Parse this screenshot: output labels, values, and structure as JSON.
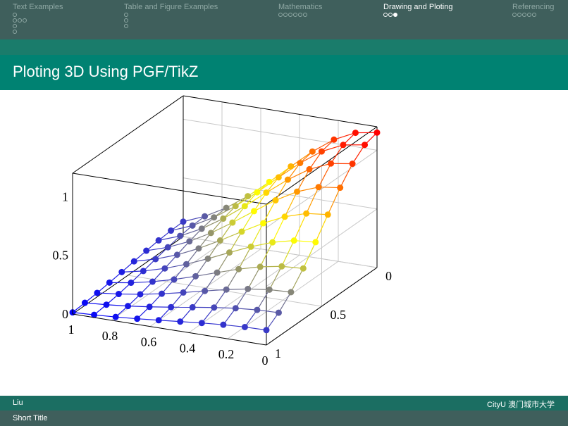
{
  "nav": {
    "sections": [
      {
        "label": "Text Examples",
        "dots": [
          [
            0
          ],
          [
            0,
            0,
            0
          ],
          [
            0
          ],
          [
            0
          ]
        ],
        "active": false
      },
      {
        "label": "Table and Figure Examples",
        "dots": [
          [
            0
          ],
          [
            0
          ],
          [
            0
          ]
        ],
        "active": false
      },
      {
        "label": "Mathematics",
        "dots": [
          [
            0,
            0,
            0,
            0,
            0,
            0
          ]
        ],
        "active": false
      },
      {
        "label": "Drawing and Ploting",
        "dots": [
          [
            0,
            0,
            1
          ]
        ],
        "active": true
      },
      {
        "label": "Referencing",
        "dots": [
          [
            0,
            0,
            0,
            0,
            0
          ]
        ],
        "active": false
      }
    ]
  },
  "frame": {
    "title": "Ploting 3D Using PGF/TikZ"
  },
  "chart_data": {
    "type": "surface-3d-mesh",
    "function": "exp(-(x^2+y^2)) style surface sampled on grid",
    "x_range": [
      0,
      1
    ],
    "y_range": [
      0,
      1
    ],
    "z_range": [
      0,
      1.2
    ],
    "grid_samples": 10,
    "colormap": [
      "#0000ff",
      "#ffff00",
      "#ff0000"
    ],
    "x_ticks": [
      "0",
      "0.2",
      "0.4",
      "0.6",
      "0.8",
      "1"
    ],
    "y_ticks": [
      "0",
      "0.5",
      "1"
    ],
    "z_ticks": [
      "0",
      "0.5",
      "1"
    ],
    "grid": true
  },
  "footer": {
    "author": "Liu",
    "institute": "CityU 澳门城市大学",
    "short_title": "Short Title"
  }
}
